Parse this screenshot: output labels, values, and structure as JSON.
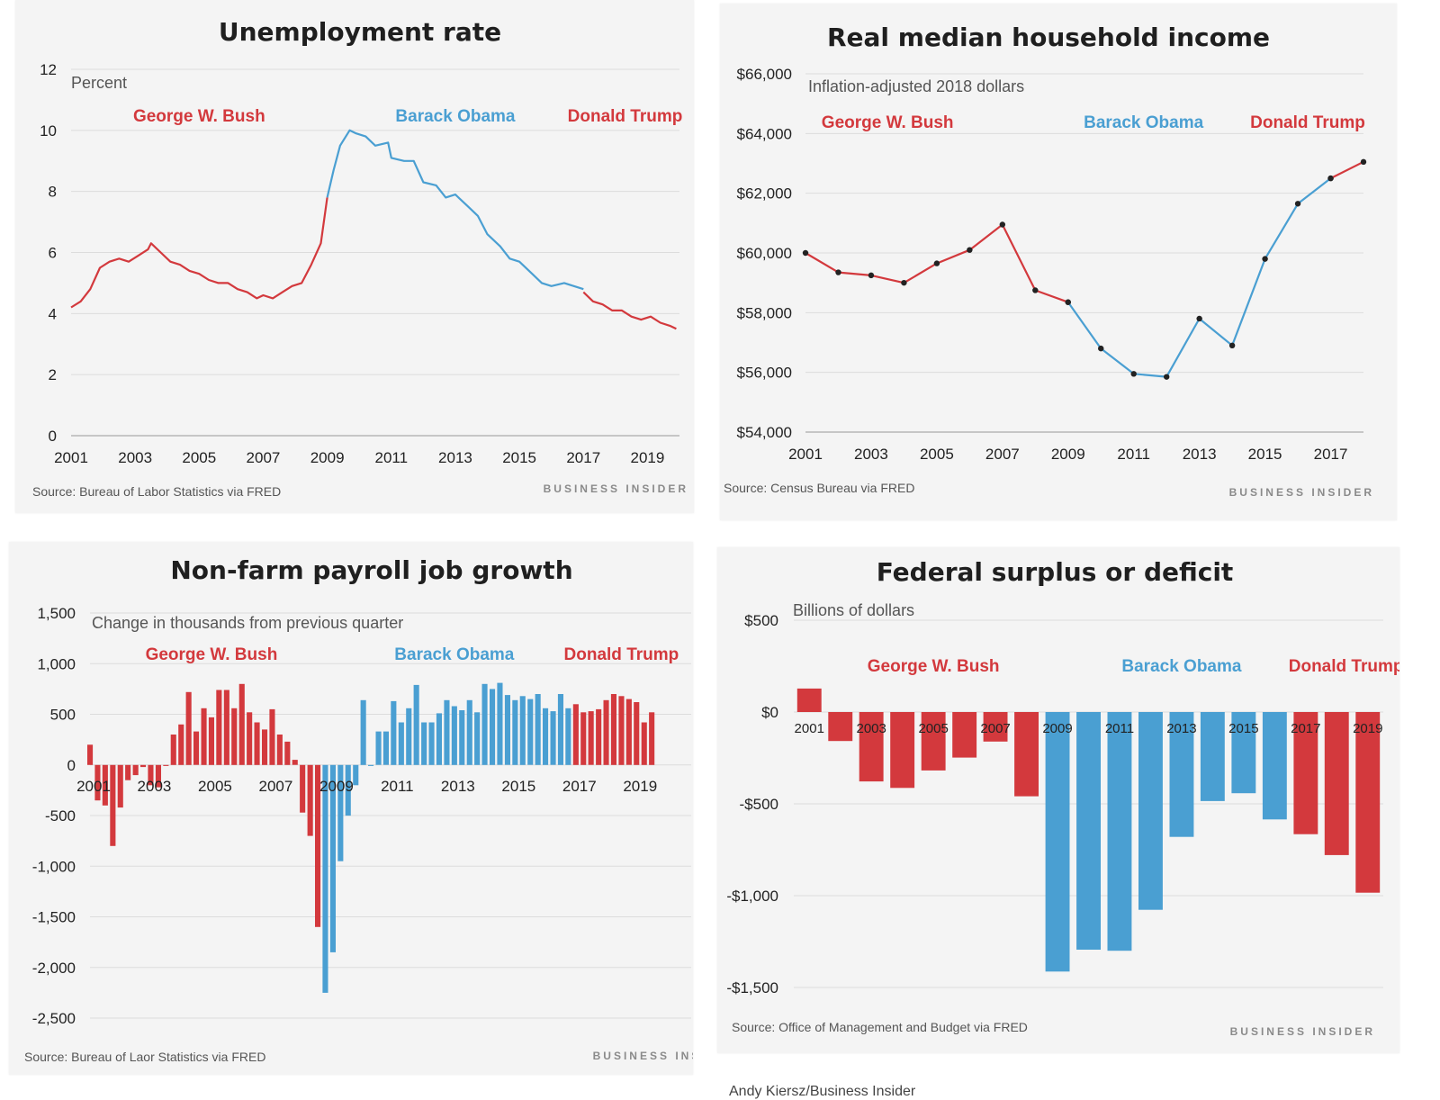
{
  "colors": {
    "red": "#d3393d",
    "blue": "#4a9fd2"
  },
  "brand": "BUSINESS INSIDER",
  "credit": "Andy Kiersz/Business Insider",
  "chart_data": [
    {
      "id": "unemployment",
      "type": "line",
      "title": "Unemployment rate",
      "ylabel": "Percent",
      "source": "Source: Bureau of Labor Statistics via FRED",
      "brand": "BUSINESS INSIDER",
      "ylim": [
        0,
        12
      ],
      "yticks": [
        0,
        2,
        4,
        6,
        8,
        10,
        12
      ],
      "ytick_labels": [
        "0",
        "2",
        "4",
        "6",
        "8",
        "10",
        "12"
      ],
      "xlim": [
        2001,
        2020
      ],
      "xticks": [
        2001,
        2003,
        2005,
        2007,
        2009,
        2011,
        2013,
        2015,
        2017,
        2019
      ],
      "xtick_labels": [
        "2001",
        "2003",
        "2005",
        "2007",
        "2009",
        "2011",
        "2013",
        "2015",
        "2017",
        "2019"
      ],
      "eras": [
        {
          "name": "George W. Bush",
          "color": "red",
          "x": 2005
        },
        {
          "name": "Barack Obama",
          "color": "blue",
          "x": 2013
        },
        {
          "name": "Donald Trump",
          "color": "red",
          "x": 2018.3
        }
      ],
      "series": [
        {
          "name": "Bush",
          "color": "red",
          "points": [
            [
              2001.0,
              4.2
            ],
            [
              2001.3,
              4.4
            ],
            [
              2001.6,
              4.8
            ],
            [
              2001.9,
              5.5
            ],
            [
              2002.2,
              5.7
            ],
            [
              2002.5,
              5.8
            ],
            [
              2002.8,
              5.7
            ],
            [
              2003.1,
              5.9
            ],
            [
              2003.4,
              6.1
            ],
            [
              2003.5,
              6.3
            ],
            [
              2003.8,
              6.0
            ],
            [
              2004.1,
              5.7
            ],
            [
              2004.4,
              5.6
            ],
            [
              2004.7,
              5.4
            ],
            [
              2005.0,
              5.3
            ],
            [
              2005.3,
              5.1
            ],
            [
              2005.6,
              5.0
            ],
            [
              2005.9,
              5.0
            ],
            [
              2006.2,
              4.8
            ],
            [
              2006.5,
              4.7
            ],
            [
              2006.8,
              4.5
            ],
            [
              2007.0,
              4.6
            ],
            [
              2007.3,
              4.5
            ],
            [
              2007.6,
              4.7
            ],
            [
              2007.9,
              4.9
            ],
            [
              2008.2,
              5.0
            ],
            [
              2008.5,
              5.6
            ],
            [
              2008.8,
              6.3
            ],
            [
              2009.0,
              7.8
            ]
          ]
        },
        {
          "name": "Obama",
          "color": "blue",
          "points": [
            [
              2009.0,
              7.8
            ],
            [
              2009.2,
              8.7
            ],
            [
              2009.4,
              9.5
            ],
            [
              2009.7,
              10.0
            ],
            [
              2009.9,
              9.9
            ],
            [
              2010.2,
              9.8
            ],
            [
              2010.5,
              9.5
            ],
            [
              2010.9,
              9.6
            ],
            [
              2011.0,
              9.1
            ],
            [
              2011.4,
              9.0
            ],
            [
              2011.7,
              9.0
            ],
            [
              2012.0,
              8.3
            ],
            [
              2012.4,
              8.2
            ],
            [
              2012.7,
              7.8
            ],
            [
              2013.0,
              7.9
            ],
            [
              2013.4,
              7.5
            ],
            [
              2013.7,
              7.2
            ],
            [
              2014.0,
              6.6
            ],
            [
              2014.4,
              6.2
            ],
            [
              2014.7,
              5.8
            ],
            [
              2015.0,
              5.7
            ],
            [
              2015.4,
              5.3
            ],
            [
              2015.7,
              5.0
            ],
            [
              2016.0,
              4.9
            ],
            [
              2016.4,
              5.0
            ],
            [
              2016.7,
              4.9
            ],
            [
              2017.0,
              4.8
            ]
          ]
        },
        {
          "name": "Trump",
          "color": "red",
          "points": [
            [
              2017.0,
              4.7
            ],
            [
              2017.3,
              4.4
            ],
            [
              2017.6,
              4.3
            ],
            [
              2017.9,
              4.1
            ],
            [
              2018.2,
              4.1
            ],
            [
              2018.5,
              3.9
            ],
            [
              2018.8,
              3.8
            ],
            [
              2019.1,
              3.9
            ],
            [
              2019.4,
              3.7
            ],
            [
              2019.7,
              3.6
            ],
            [
              2019.9,
              3.5
            ]
          ]
        }
      ]
    },
    {
      "id": "income",
      "type": "line",
      "title": "Real median household income",
      "ylabel": "Inflation-adjusted 2018 dollars",
      "source": "Source: Census Bureau via FRED",
      "brand": "BUSINESS INSIDER",
      "ylim": [
        54000,
        66000
      ],
      "yticks": [
        54000,
        56000,
        58000,
        60000,
        62000,
        64000,
        66000
      ],
      "ytick_labels": [
        "$54,000",
        "$56,000",
        "$58,000",
        "$60,000",
        "$62,000",
        "$64,000",
        "$66,000"
      ],
      "xlim": [
        2001,
        2018
      ],
      "xticks": [
        2001,
        2003,
        2005,
        2007,
        2009,
        2011,
        2013,
        2015,
        2017
      ],
      "xtick_labels": [
        "2001",
        "2003",
        "2005",
        "2007",
        "2009",
        "2011",
        "2013",
        "2015",
        "2017"
      ],
      "eras": [
        {
          "name": "George W. Bush",
          "color": "red",
          "x": 2003.5
        },
        {
          "name": "Barack Obama",
          "color": "blue",
          "x": 2011.3
        },
        {
          "name": "Donald Trump",
          "color": "red",
          "x": 2016.3
        }
      ],
      "series": [
        {
          "name": "Bush",
          "color": "red",
          "markers": true,
          "points": [
            [
              2001,
              60000
            ],
            [
              2002,
              59350
            ],
            [
              2003,
              59250
            ],
            [
              2004,
              59000
            ],
            [
              2005,
              59650
            ],
            [
              2006,
              60100
            ],
            [
              2007,
              60950
            ],
            [
              2008,
              58750
            ],
            [
              2009,
              58350
            ]
          ]
        },
        {
          "name": "Obama",
          "color": "blue",
          "markers": true,
          "points": [
            [
              2009,
              58350
            ],
            [
              2010,
              56800
            ],
            [
              2011,
              55950
            ],
            [
              2012,
              55850
            ],
            [
              2013,
              57800
            ],
            [
              2014,
              56900
            ],
            [
              2015,
              59800
            ],
            [
              2016,
              61650
            ],
            [
              2017,
              62500
            ]
          ]
        },
        {
          "name": "Trump",
          "color": "red",
          "markers": true,
          "points": [
            [
              2017,
              62500
            ],
            [
              2018,
              63050
            ]
          ]
        }
      ]
    },
    {
      "id": "payroll",
      "type": "bar",
      "title": "Non-farm payroll job growth",
      "ylabel": "Change in thousands from previous quarter",
      "source": "Source: Bureau of Laor Statistics via FRED",
      "brand": "BUSINESS INSIDER",
      "ylim": [
        -2500,
        1500
      ],
      "yticks": [
        -2500,
        -2000,
        -1500,
        -1000,
        -500,
        0,
        500,
        1000,
        1500
      ],
      "ytick_labels": [
        "-2,500",
        "-2,000",
        "-1,500",
        "-1,000",
        "-500",
        "0",
        "500",
        "1,000",
        "1,500"
      ],
      "xlim": [
        2001,
        2020.8
      ],
      "xticks": [
        2001,
        2003,
        2005,
        2007,
        2009,
        2011,
        2013,
        2015,
        2017,
        2019
      ],
      "xtick_labels": [
        "2001",
        "2003",
        "2005",
        "2007",
        "2009",
        "2011",
        "2013",
        "2015",
        "2017",
        "2019"
      ],
      "eras": [
        {
          "name": "George W. Bush",
          "color": "red",
          "x": 2005
        },
        {
          "name": "Barack Obama",
          "color": "blue",
          "x": 2013
        },
        {
          "name": "Donald Trump",
          "color": "red",
          "x": 2018.5
        }
      ],
      "start": 2001,
      "step": 0.25,
      "bars": [
        {
          "v": 200,
          "c": "red"
        },
        {
          "v": -350,
          "c": "red"
        },
        {
          "v": -400,
          "c": "red"
        },
        {
          "v": -800,
          "c": "red"
        },
        {
          "v": -420,
          "c": "red"
        },
        {
          "v": -150,
          "c": "red"
        },
        {
          "v": -100,
          "c": "red"
        },
        {
          "v": -20,
          "c": "red"
        },
        {
          "v": -200,
          "c": "red"
        },
        {
          "v": -220,
          "c": "red"
        },
        {
          "v": -10,
          "c": "red"
        },
        {
          "v": 300,
          "c": "red"
        },
        {
          "v": 400,
          "c": "red"
        },
        {
          "v": 720,
          "c": "red"
        },
        {
          "v": 330,
          "c": "red"
        },
        {
          "v": 560,
          "c": "red"
        },
        {
          "v": 470,
          "c": "red"
        },
        {
          "v": 740,
          "c": "red"
        },
        {
          "v": 740,
          "c": "red"
        },
        {
          "v": 560,
          "c": "red"
        },
        {
          "v": 800,
          "c": "red"
        },
        {
          "v": 520,
          "c": "red"
        },
        {
          "v": 420,
          "c": "red"
        },
        {
          "v": 350,
          "c": "red"
        },
        {
          "v": 550,
          "c": "red"
        },
        {
          "v": 300,
          "c": "red"
        },
        {
          "v": 230,
          "c": "red"
        },
        {
          "v": 50,
          "c": "red"
        },
        {
          "v": -470,
          "c": "red"
        },
        {
          "v": -700,
          "c": "red"
        },
        {
          "v": -1600,
          "c": "red"
        },
        {
          "v": -2250,
          "c": "blue"
        },
        {
          "v": -1850,
          "c": "blue"
        },
        {
          "v": -950,
          "c": "blue"
        },
        {
          "v": -500,
          "c": "blue"
        },
        {
          "v": -200,
          "c": "blue"
        },
        {
          "v": 640,
          "c": "blue"
        },
        {
          "v": -10,
          "c": "blue"
        },
        {
          "v": 330,
          "c": "blue"
        },
        {
          "v": 330,
          "c": "blue"
        },
        {
          "v": 630,
          "c": "blue"
        },
        {
          "v": 420,
          "c": "blue"
        },
        {
          "v": 560,
          "c": "blue"
        },
        {
          "v": 790,
          "c": "blue"
        },
        {
          "v": 420,
          "c": "blue"
        },
        {
          "v": 420,
          "c": "blue"
        },
        {
          "v": 510,
          "c": "blue"
        },
        {
          "v": 640,
          "c": "blue"
        },
        {
          "v": 580,
          "c": "blue"
        },
        {
          "v": 540,
          "c": "blue"
        },
        {
          "v": 640,
          "c": "blue"
        },
        {
          "v": 520,
          "c": "blue"
        },
        {
          "v": 800,
          "c": "blue"
        },
        {
          "v": 750,
          "c": "blue"
        },
        {
          "v": 810,
          "c": "blue"
        },
        {
          "v": 690,
          "c": "blue"
        },
        {
          "v": 640,
          "c": "blue"
        },
        {
          "v": 680,
          "c": "blue"
        },
        {
          "v": 650,
          "c": "blue"
        },
        {
          "v": 700,
          "c": "blue"
        },
        {
          "v": 560,
          "c": "blue"
        },
        {
          "v": 530,
          "c": "blue"
        },
        {
          "v": 700,
          "c": "blue"
        },
        {
          "v": 560,
          "c": "blue"
        },
        {
          "v": 600,
          "c": "red"
        },
        {
          "v": 520,
          "c": "red"
        },
        {
          "v": 530,
          "c": "red"
        },
        {
          "v": 550,
          "c": "red"
        },
        {
          "v": 640,
          "c": "red"
        },
        {
          "v": 700,
          "c": "red"
        },
        {
          "v": 680,
          "c": "red"
        },
        {
          "v": 650,
          "c": "red"
        },
        {
          "v": 620,
          "c": "red"
        },
        {
          "v": 420,
          "c": "red"
        },
        {
          "v": 520,
          "c": "red"
        }
      ]
    },
    {
      "id": "deficit",
      "type": "bar",
      "title": "Federal surplus or deficit",
      "ylabel": "Billions of dollars",
      "source": "Source: Office of Management and Budget via FRED",
      "brand": "BUSINESS INSIDER",
      "ylim": [
        -1500,
        500
      ],
      "yticks": [
        -1500,
        -1000,
        -500,
        0,
        500
      ],
      "ytick_labels": [
        "-$1,500",
        "-$1,000",
        "-$500",
        "$0",
        "$500"
      ],
      "eras": [
        {
          "name": "George W. Bush",
          "color": "red",
          "x": 2005
        },
        {
          "name": "Barack Obama",
          "color": "blue",
          "x": 2013
        },
        {
          "name": "Donald Trump",
          "color": "red",
          "x": 2018.3
        }
      ],
      "start": 2001,
      "step": 1,
      "years": [
        "2001",
        "2003",
        "2005",
        "2007",
        "2009",
        "2011",
        "2013",
        "2015",
        "2017",
        "2019"
      ],
      "bars": [
        {
          "year": 2001,
          "v": 128,
          "c": "red"
        },
        {
          "year": 2002,
          "v": -158,
          "c": "red"
        },
        {
          "year": 2003,
          "v": -378,
          "c": "red"
        },
        {
          "year": 2004,
          "v": -413,
          "c": "red"
        },
        {
          "year": 2005,
          "v": -318,
          "c": "red"
        },
        {
          "year": 2006,
          "v": -248,
          "c": "red"
        },
        {
          "year": 2007,
          "v": -161,
          "c": "red"
        },
        {
          "year": 2008,
          "v": -459,
          "c": "red"
        },
        {
          "year": 2009,
          "v": -1413,
          "c": "blue"
        },
        {
          "year": 2010,
          "v": -1294,
          "c": "blue"
        },
        {
          "year": 2011,
          "v": -1300,
          "c": "blue"
        },
        {
          "year": 2012,
          "v": -1077,
          "c": "blue"
        },
        {
          "year": 2013,
          "v": -680,
          "c": "blue"
        },
        {
          "year": 2014,
          "v": -485,
          "c": "blue"
        },
        {
          "year": 2015,
          "v": -442,
          "c": "blue"
        },
        {
          "year": 2016,
          "v": -585,
          "c": "blue"
        },
        {
          "year": 2017,
          "v": -665,
          "c": "red"
        },
        {
          "year": 2018,
          "v": -779,
          "c": "red"
        },
        {
          "year": 2019,
          "v": -984,
          "c": "red"
        }
      ]
    }
  ]
}
